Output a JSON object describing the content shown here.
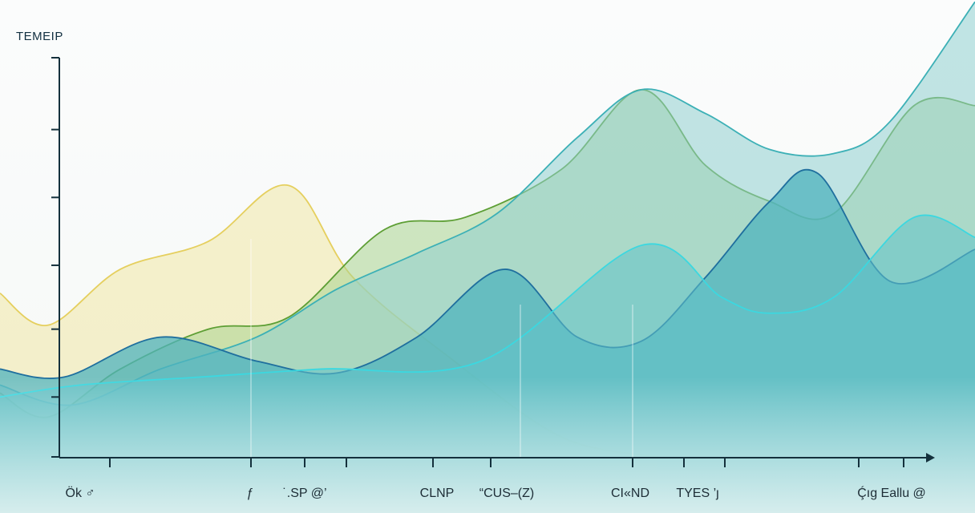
{
  "chart_data": {
    "type": "area",
    "title": "",
    "ylabel": "TEMEIP",
    "xlabel": "",
    "x_range": [
      0,
      1216
    ],
    "ylim": [
      0,
      100
    ],
    "grid": false,
    "legend": "none",
    "x_tick_labels": [
      {
        "x": 100,
        "label": "Ök ♂"
      },
      {
        "x": 312,
        "label": "ƒ"
      },
      {
        "x": 380,
        "label": "˙.SP @’"
      },
      {
        "x": 545,
        "label": "CLNP"
      },
      {
        "x": 632,
        "label": "“CUS–(Z)"
      },
      {
        "x": 786,
        "label": "CI«ND"
      },
      {
        "x": 870,
        "label": "TYES ’ȷ"
      },
      {
        "x": 1112,
        "label": "Ḉıg Eallu @"
      }
    ],
    "x_ticks": [
      137,
      313,
      380,
      432,
      540,
      612,
      789,
      853,
      904,
      1071,
      1127
    ],
    "y_ticks": [
      0,
      15,
      32,
      48,
      65,
      82,
      100
    ],
    "series": [
      {
        "color": "#e5cf5e",
        "fill": "#f1e7a6",
        "x": [
          0,
          60,
          150,
          260,
          360,
          440,
          560,
          700,
          820
        ],
        "y": [
          41,
          33,
          47,
          54,
          68,
          45,
          25,
          5,
          0
        ]
      },
      {
        "color": "#5d9e34",
        "fill": "#a9d48f",
        "x": [
          0,
          60,
          150,
          260,
          360,
          480,
          580,
          700,
          800,
          880,
          960,
          1040,
          1140,
          1216
        ],
        "y": [
          16,
          10,
          22,
          32,
          35,
          57,
          60,
          72,
          92,
          73,
          64,
          61,
          88,
          88
        ]
      },
      {
        "color": "#3cb0b6",
        "fill": "#8fd0cf",
        "x": [
          0,
          90,
          200,
          320,
          420,
          520,
          620,
          720,
          800,
          880,
          960,
          1040,
          1110,
          1216
        ],
        "y": [
          18,
          13,
          22,
          30,
          42,
          51,
          61,
          80,
          92,
          86,
          77,
          76,
          84,
          114
        ]
      },
      {
        "color": "#1f6f9e",
        "fill": "#4fb3bd",
        "x": [
          0,
          80,
          200,
          320,
          420,
          520,
          630,
          720,
          800,
          880,
          960,
          1020,
          1110,
          1216
        ],
        "y": [
          22,
          20,
          30,
          24,
          21,
          30,
          47,
          30,
          29,
          45,
          64,
          71,
          44,
          52
        ]
      },
      {
        "color": "#3bd8e0",
        "fill": "#63c2c8",
        "x": [
          0,
          100,
          250,
          400,
          600,
          800,
          900,
          960,
          1040,
          1140,
          1216
        ],
        "y": [
          15,
          18,
          20,
          22,
          24,
          53,
          40,
          36,
          40,
          60,
          55
        ]
      }
    ]
  }
}
